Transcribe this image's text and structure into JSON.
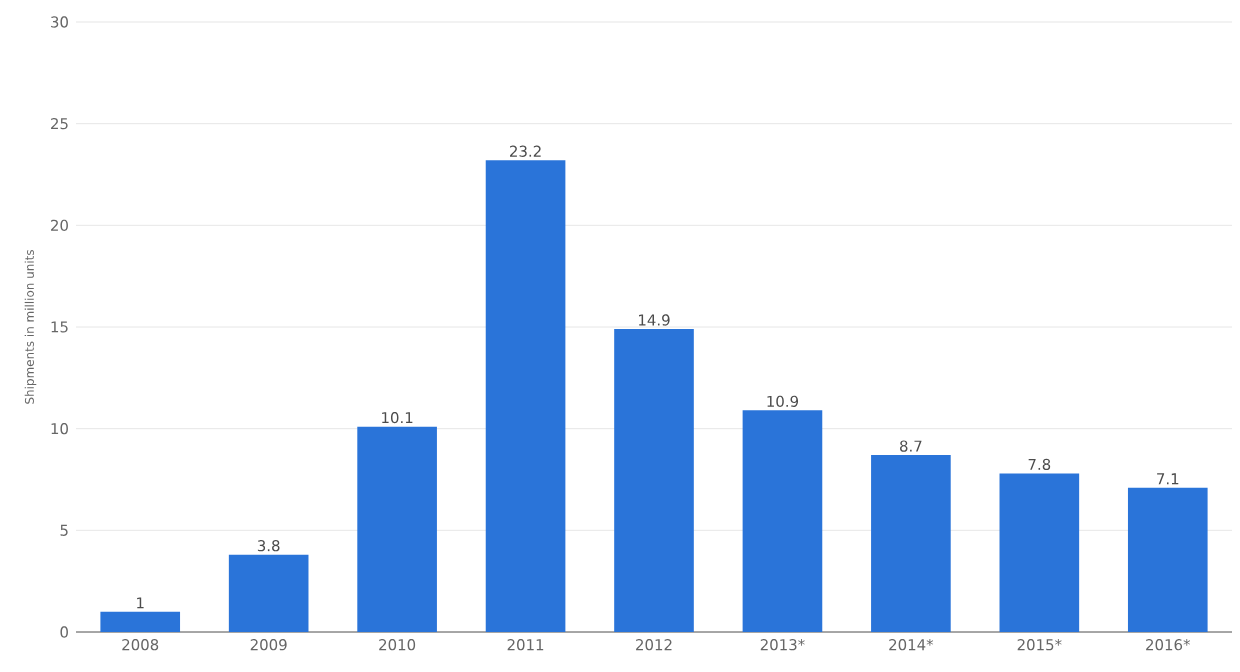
{
  "chart_data": {
    "type": "bar",
    "ylabel": "Shipments in million units",
    "categories": [
      "2008",
      "2009",
      "2010",
      "2011",
      "2012",
      "2013*",
      "2014*",
      "2015*",
      "2016*"
    ],
    "values": [
      1,
      3.8,
      10.1,
      23.2,
      14.9,
      10.9,
      8.7,
      7.8,
      7.1
    ],
    "color": "#2a74d9",
    "ylim": [
      0,
      30
    ],
    "yticks": [
      0,
      5,
      10,
      15,
      20,
      25,
      30
    ],
    "grid": "y",
    "data_labels": true
  }
}
